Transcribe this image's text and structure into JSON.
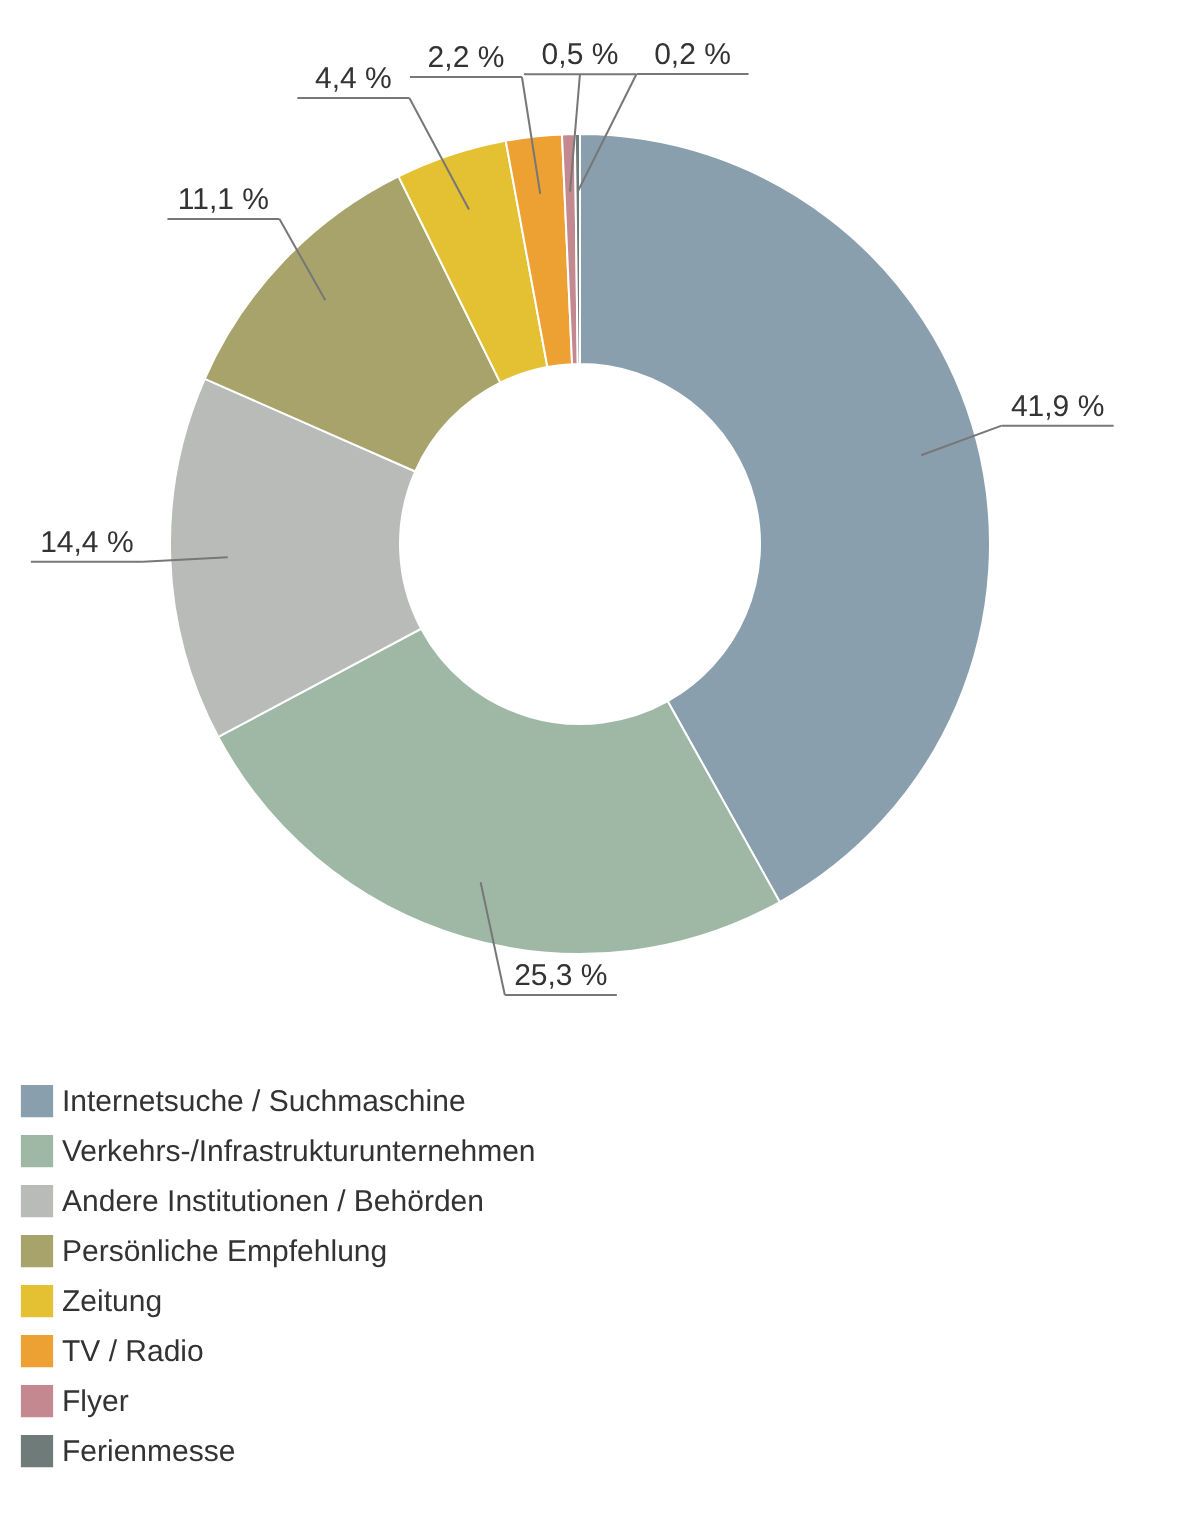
{
  "chart_data": {
    "type": "donut",
    "categories": [
      "Internetsuche / Suchmaschine",
      "Verkehrs-/Infrastrukturunternehmen",
      "Andere Institutionen / Behörden",
      "Persönliche Empfehlung",
      "Zeitung",
      "TV / Radio",
      "Flyer",
      "Ferienmesse"
    ],
    "values": [
      41.9,
      25.3,
      14.4,
      11.1,
      4.4,
      2.2,
      0.5,
      0.2
    ],
    "value_labels": [
      "41,9 %",
      "25,3 %",
      "14,4 %",
      "11,1 %",
      "4,4 %",
      "2,2 %",
      "0,5 %",
      "0,2 %"
    ],
    "colors": [
      "#8a9fae",
      "#9fb8a6",
      "#b9bbb9",
      "#a7a36a",
      "#e3c132",
      "#eda132",
      "#c48990",
      "#6f7b79"
    ],
    "legend": "bottom"
  }
}
